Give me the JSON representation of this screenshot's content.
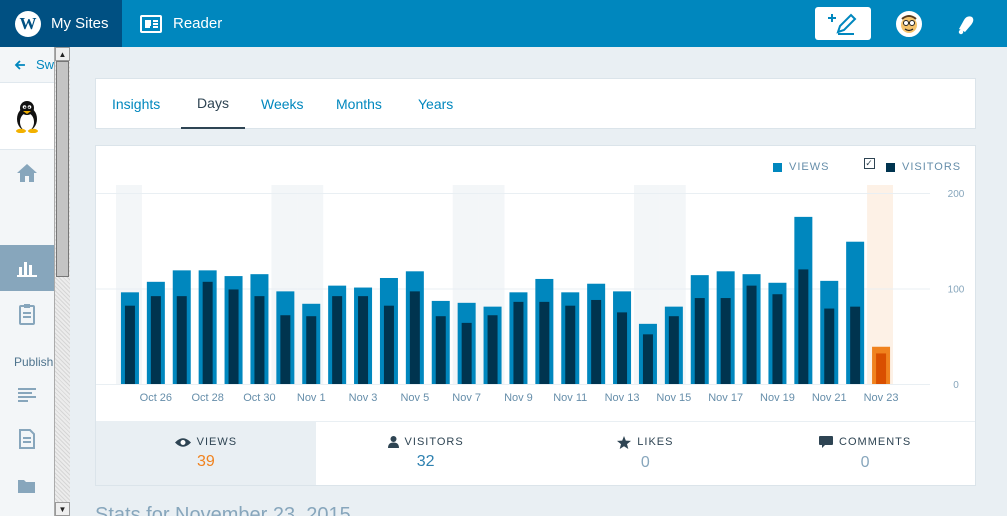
{
  "masterbar": {
    "my_sites_label": "My Sites",
    "reader_label": "Reader",
    "brand_color": "#005082",
    "bar_color": "#0087be"
  },
  "sidebar": {
    "switch_label": "Sw",
    "publish_heading": "Publish"
  },
  "tabs": [
    {
      "label": "Insights",
      "active": false
    },
    {
      "label": "Days",
      "active": true
    },
    {
      "label": "Weeks",
      "active": false
    },
    {
      "label": "Months",
      "active": false
    },
    {
      "label": "Years",
      "active": false
    }
  ],
  "legend": {
    "views_label": "VIEWS",
    "visitors_label": "VISITORS",
    "visitors_checked": true
  },
  "chart_data": {
    "type": "bar",
    "categories": [
      "Oct 25",
      "Oct 26",
      "Oct 27",
      "Oct 28",
      "Oct 29",
      "Oct 30",
      "Oct 31",
      "Nov 1",
      "Nov 2",
      "Nov 3",
      "Nov 4",
      "Nov 5",
      "Nov 6",
      "Nov 7",
      "Nov 8",
      "Nov 9",
      "Nov 10",
      "Nov 11",
      "Nov 12",
      "Nov 13",
      "Nov 14",
      "Nov 15",
      "Nov 16",
      "Nov 17",
      "Nov 18",
      "Nov 19",
      "Nov 20",
      "Nov 21",
      "Nov 22",
      "Nov 23"
    ],
    "x_tick_labels": [
      "Oct 26",
      "Oct 28",
      "Oct 30",
      "Nov 1",
      "Nov 3",
      "Nov 5",
      "Nov 7",
      "Nov 9",
      "Nov 11",
      "Nov 13",
      "Nov 15",
      "Nov 17",
      "Nov 19",
      "Nov 21",
      "Nov 23"
    ],
    "y_tick_labels": [
      "200",
      "100",
      "0"
    ],
    "ylim": [
      0,
      200
    ],
    "series": [
      {
        "name": "VIEWS",
        "color": "#0087be",
        "values": [
          96,
          107,
          119,
          119,
          113,
          115,
          97,
          84,
          103,
          101,
          111,
          118,
          87,
          85,
          81,
          96,
          110,
          96,
          105,
          97,
          63,
          81,
          114,
          118,
          115,
          106,
          175,
          108,
          149,
          39
        ]
      },
      {
        "name": "VISITORS",
        "color": "#00344f",
        "values": [
          82,
          92,
          92,
          107,
          99,
          92,
          72,
          71,
          92,
          92,
          82,
          97,
          71,
          64,
          72,
          86,
          86,
          82,
          88,
          75,
          52,
          71,
          90,
          90,
          103,
          94,
          120,
          79,
          81,
          32
        ]
      }
    ],
    "weekend_shaded_days": [
      0,
      6,
      7,
      13,
      14,
      20,
      21
    ],
    "highlight_day": 29,
    "highlight_color": "#f0821e"
  },
  "summary": [
    {
      "label": "VIEWS",
      "value": "39",
      "icon": "eye-icon",
      "active": true,
      "value_color": "#f0821e"
    },
    {
      "label": "VISITORS",
      "value": "32",
      "icon": "person-icon",
      "active": false,
      "value_color": "#2e81b0"
    },
    {
      "label": "LIKES",
      "value": "0",
      "icon": "star-icon",
      "active": false,
      "value_color": "#87a6bc"
    },
    {
      "label": "COMMENTS",
      "value": "0",
      "icon": "comment-icon",
      "active": false,
      "value_color": "#87a6bc"
    }
  ],
  "footer_title": "Stats for November 23, 2015"
}
